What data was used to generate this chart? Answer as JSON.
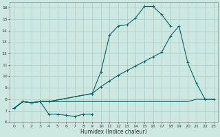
{
  "xlabel": "Humidex (Indice chaleur)",
  "bg_color": "#cce8e0",
  "grid_color": "#aacccc",
  "line_color": "#006666",
  "xlim": [
    -0.5,
    23.5
  ],
  "ylim": [
    6,
    16.5
  ],
  "xticks": [
    0,
    1,
    2,
    3,
    4,
    5,
    6,
    7,
    8,
    9,
    10,
    11,
    12,
    13,
    14,
    15,
    16,
    17,
    18,
    19,
    20,
    21,
    22,
    23
  ],
  "yticks": [
    6,
    7,
    8,
    9,
    10,
    11,
    12,
    13,
    14,
    15,
    16
  ],
  "line1_x": [
    0,
    1,
    2,
    3,
    4,
    5,
    6,
    7,
    8,
    9
  ],
  "line1_y": [
    7.2,
    7.8,
    7.7,
    7.8,
    6.7,
    6.7,
    6.6,
    6.5,
    6.7,
    6.7
  ],
  "line2_x": [
    0,
    1,
    2,
    3,
    4,
    5,
    6,
    7,
    8,
    9,
    10,
    11,
    12,
    13,
    14,
    15,
    16,
    17,
    18,
    19,
    20,
    21,
    22,
    23
  ],
  "line2_y": [
    7.2,
    7.8,
    7.7,
    7.8,
    7.8,
    7.8,
    7.8,
    7.8,
    7.8,
    7.8,
    7.8,
    7.8,
    7.8,
    7.8,
    7.8,
    7.8,
    7.8,
    7.8,
    7.8,
    7.8,
    7.8,
    8.0,
    8.0,
    8.0
  ],
  "line3_x": [
    0,
    1,
    2,
    3,
    4,
    9,
    10,
    11,
    12,
    13,
    14,
    15,
    16,
    17,
    18
  ],
  "line3_y": [
    7.2,
    7.8,
    7.7,
    7.8,
    7.8,
    8.5,
    10.4,
    13.6,
    14.4,
    14.5,
    15.1,
    16.1,
    16.1,
    15.4,
    14.4
  ],
  "line4_x": [
    0,
    1,
    2,
    3,
    4,
    9,
    10,
    11,
    12,
    13,
    14,
    15,
    16,
    17,
    18,
    19,
    20,
    21,
    22,
    23
  ],
  "line4_y": [
    7.2,
    7.8,
    7.7,
    7.8,
    7.8,
    8.5,
    9.1,
    9.6,
    10.1,
    10.5,
    10.9,
    11.3,
    11.7,
    12.1,
    13.5,
    14.4,
    11.2,
    9.4,
    8.0,
    8.0
  ]
}
